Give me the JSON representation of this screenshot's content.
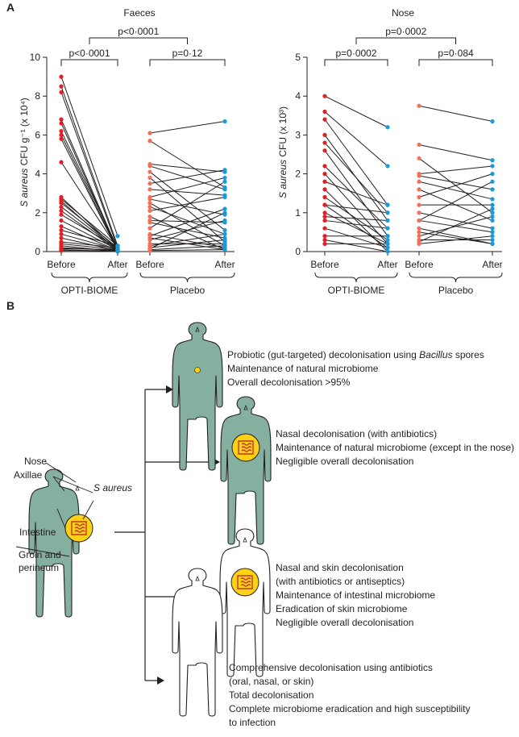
{
  "panel_a_label": "A",
  "panel_b_label": "B",
  "chart_data": [
    {
      "type": "scatter",
      "title": "Faeces",
      "ylabel": "S aureus CFU g⁻¹ (x 10⁴)",
      "ylabel_italic": "S aureus",
      "ylabel_rest": " CFU g⁻¹ (x 10⁴)",
      "ylim": [
        0,
        10
      ],
      "yticks": [
        "0",
        "2",
        "4",
        "6",
        "8",
        "10"
      ],
      "x_labels": [
        "Before",
        "After",
        "Before",
        "After"
      ],
      "group_labels": [
        "OPTI-BIOME",
        "Placebo"
      ],
      "comparisons": [
        {
          "label": "p<0·0001",
          "between": "OPTI-BIOME before vs after"
        },
        {
          "label": "p=0·12",
          "between": "Placebo before vs after"
        },
        {
          "label": "p<0·0001",
          "between": "OPTI-BIOME vs Placebo"
        }
      ],
      "colors": {
        "opti_before": "#e31e24",
        "placebo_before": "#f26f5a",
        "after": "#1a9ad6"
      },
      "series": [
        {
          "name": "OPTI-BIOME",
          "pairs": [
            [
              9.0,
              0.8
            ],
            [
              8.5,
              0.3
            ],
            [
              8.2,
              0.2
            ],
            [
              6.8,
              0.1
            ],
            [
              6.6,
              0.05
            ],
            [
              6.2,
              0.2
            ],
            [
              6.0,
              0.1
            ],
            [
              5.8,
              0.05
            ],
            [
              4.6,
              0.15
            ],
            [
              2.8,
              0.1
            ],
            [
              2.7,
              0.3
            ],
            [
              2.6,
              0.05
            ],
            [
              2.5,
              0.2
            ],
            [
              2.3,
              0.1
            ],
            [
              2.1,
              0.05
            ],
            [
              1.9,
              0.2
            ],
            [
              1.6,
              0.1
            ],
            [
              1.3,
              0.05
            ],
            [
              1.1,
              0.3
            ],
            [
              0.9,
              0.1
            ],
            [
              0.7,
              0.05
            ],
            [
              0.5,
              0.2
            ],
            [
              0.4,
              0.1
            ],
            [
              0.3,
              0.0
            ],
            [
              0.2,
              0.05
            ],
            [
              0.15,
              0.1
            ],
            [
              0.1,
              0.0
            ],
            [
              0.05,
              0.05
            ]
          ]
        },
        {
          "name": "Placebo",
          "pairs": [
            [
              6.1,
              6.7
            ],
            [
              5.7,
              3.3
            ],
            [
              4.5,
              4.1
            ],
            [
              4.4,
              3.2
            ],
            [
              4.1,
              1.1
            ],
            [
              3.8,
              0.5
            ],
            [
              3.5,
              4.2
            ],
            [
              3.2,
              2.9
            ],
            [
              2.8,
              3.8
            ],
            [
              2.7,
              1.9
            ],
            [
              2.5,
              0.3
            ],
            [
              2.3,
              0.9
            ],
            [
              2.1,
              2.8
            ],
            [
              1.8,
              0.1
            ],
            [
              1.6,
              1.5
            ],
            [
              1.5,
              0.7
            ],
            [
              1.2,
              3.6
            ],
            [
              0.9,
              0.2
            ],
            [
              0.8,
              2.2
            ],
            [
              0.7,
              0.1
            ],
            [
              0.6,
              1.6
            ],
            [
              0.4,
              0.4
            ],
            [
              0.3,
              0.9
            ],
            [
              0.2,
              0.6
            ],
            [
              0.15,
              2.0
            ],
            [
              0.1,
              0.3
            ],
            [
              0.05,
              0.1
            ]
          ]
        }
      ]
    },
    {
      "type": "scatter",
      "title": "Nose",
      "ylabel": "S aureus CFU (x 10³)",
      "ylabel_italic": "S aureus",
      "ylabel_rest": " CFU (x 10³)",
      "ylim": [
        0,
        5
      ],
      "yticks": [
        "0",
        "1",
        "2",
        "3",
        "4",
        "5"
      ],
      "x_labels": [
        "Before",
        "After",
        "Before",
        "After"
      ],
      "group_labels": [
        "OPTI-BIOME",
        "Placebo"
      ],
      "comparisons": [
        {
          "label": "p=0·0002",
          "between": "OPTI-BIOME before vs after"
        },
        {
          "label": "p=0·084",
          "between": "Placebo before vs after"
        },
        {
          "label": "p=0·0002",
          "between": "OPTI-BIOME vs Placebo"
        }
      ],
      "colors": {
        "opti_before": "#e31e24",
        "placebo_before": "#f26f5a",
        "after": "#1a9ad6"
      },
      "series": [
        {
          "name": "OPTI-BIOME",
          "pairs": [
            [
              4.0,
              3.2
            ],
            [
              3.6,
              2.2
            ],
            [
              3.4,
              1.2
            ],
            [
              3.0,
              0.8
            ],
            [
              2.8,
              1.0
            ],
            [
              2.6,
              0.4
            ],
            [
              2.2,
              0.6
            ],
            [
              2.0,
              0.2
            ],
            [
              1.8,
              1.2
            ],
            [
              1.6,
              0.0
            ],
            [
              1.4,
              0.3
            ],
            [
              1.2,
              1.0
            ],
            [
              1.0,
              0.2
            ],
            [
              0.8,
              0.6
            ],
            [
              0.6,
              0.1
            ],
            [
              0.4,
              0.4
            ],
            [
              0.3,
              0.0
            ],
            [
              0.2,
              0.2
            ],
            [
              1.2,
              0.1
            ],
            [
              0.9,
              0.8
            ]
          ]
        },
        {
          "name": "Placebo",
          "pairs": [
            [
              3.75,
              3.35
            ],
            [
              2.75,
              2.35
            ],
            [
              2.4,
              1.0
            ],
            [
              2.0,
              2.2
            ],
            [
              1.95,
              1.6
            ],
            [
              1.6,
              0.8
            ],
            [
              1.4,
              2.0
            ],
            [
              1.2,
              1.2
            ],
            [
              1.0,
              0.6
            ],
            [
              0.8,
              1.8
            ],
            [
              0.6,
              0.2
            ],
            [
              0.4,
              0.9
            ],
            [
              0.3,
              0.3
            ],
            [
              0.25,
              1.1
            ],
            [
              0.2,
              0.4
            ],
            [
              0.8,
              0.5
            ],
            [
              1.8,
              1.35
            ],
            [
              0.5,
              0.2
            ]
          ]
        }
      ]
    }
  ],
  "panel_b": {
    "body_labels": {
      "nose": "Nose",
      "axillae": "Axillae",
      "s_aureus": "S aureus",
      "intestine": "Intestine",
      "groin_1": "Groin and",
      "groin_2": "perineum"
    },
    "outcomes": [
      {
        "lines": [
          "Probiotic (gut-targeted) decolonisation using Bacillus spores",
          "Maintenance of natural microbiome",
          "Overall decolonisation >95%"
        ],
        "italic_word": "Bacillus",
        "fill": "#85af9e"
      },
      {
        "lines": [
          "Nasal decolonisation (with antibiotics)",
          "Maintenance of natural microbiome (except in the nose)",
          "Negligible overall decolonisation"
        ],
        "fill": "#85af9e"
      },
      {
        "lines": [
          "Nasal and skin decolonisation",
          "(with antibiotics or antiseptics)",
          "Maintenance of intestinal microbiome",
          "Eradication of skin microbiome",
          "Negligible overall decolonisation"
        ],
        "fill": "#ffffff"
      },
      {
        "lines": [
          "Comprehensive decolonisation using antibiotics",
          "(oral, nasal, or skin)",
          "Total decolonisation",
          "Complete microbiome eradication and high susceptibility",
          "to infection"
        ],
        "fill": "#ffffff"
      }
    ],
    "colors": {
      "body_green": "#85af9e",
      "gut_yellow": "#fcd116",
      "gut_red": "#c0392b"
    }
  }
}
